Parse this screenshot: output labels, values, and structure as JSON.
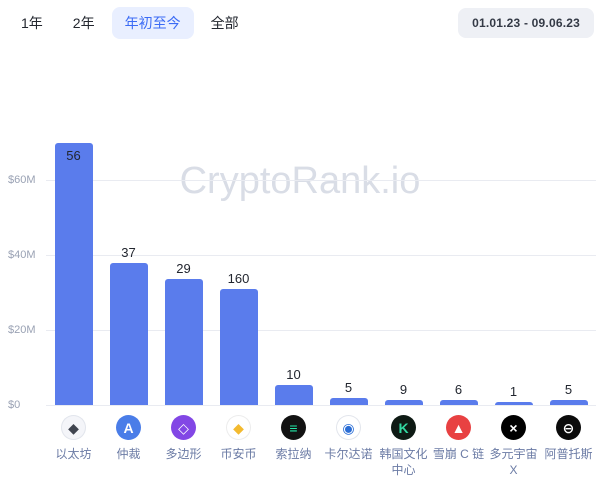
{
  "toolbar": {
    "tabs": [
      {
        "id": "1y",
        "label": "1年",
        "active": false
      },
      {
        "id": "2y",
        "label": "2年",
        "active": false
      },
      {
        "id": "ytd",
        "label": "年初至今",
        "active": true
      },
      {
        "id": "all",
        "label": "全部",
        "active": false
      }
    ],
    "date_range": "01.01.23 - 09.06.23",
    "active_tab_bg": "#e9efff",
    "active_tab_color": "#3b6bf5"
  },
  "watermark": "CryptoRank.io",
  "chart_data": {
    "type": "bar",
    "description": "Funds raised year-to-date per blockchain ecosystem; bar labels show number of rounds",
    "ylim": [
      0,
      80
    ],
    "yticks": [
      {
        "label": "$0",
        "value": 0
      },
      {
        "label": "$20M",
        "value": 20
      },
      {
        "label": "$40M",
        "value": 40
      },
      {
        "label": "$60M",
        "value": 60
      }
    ],
    "bar_color": "#5a7cec",
    "grid_color": "#e9ebf1",
    "items": [
      {
        "slug": "ethereum",
        "category": "以太坊",
        "value_musd": 70,
        "count_label": "56",
        "label_inside": true,
        "icon": {
          "name": "ethereum-icon",
          "glyph": "◆",
          "bg": "#f4f5f9",
          "fg": "#3f444f",
          "border": "#e2e5ec"
        }
      },
      {
        "slug": "arbitrum",
        "category": "仲裁",
        "value_musd": 38,
        "count_label": "37",
        "label_inside": false,
        "icon": {
          "name": "arbitrum-icon",
          "glyph": "A",
          "bg": "#4a7de8",
          "fg": "#ffffff",
          "border": ""
        }
      },
      {
        "slug": "polygon",
        "category": "多边形",
        "value_musd": 33.5,
        "count_label": "29",
        "label_inside": false,
        "icon": {
          "name": "polygon-icon",
          "glyph": "◇",
          "bg": "#8247e5",
          "fg": "#ffffff",
          "border": ""
        }
      },
      {
        "slug": "bnb-chain",
        "category": "币安币",
        "value_musd": 31,
        "count_label": "160",
        "label_inside": false,
        "icon": {
          "name": "bnb-icon",
          "glyph": "◆",
          "bg": "#ffffff",
          "fg": "#f3ba2f",
          "border": "#ececec"
        }
      },
      {
        "slug": "solana",
        "category": "索拉纳",
        "value_musd": 5.3,
        "count_label": "10",
        "label_inside": false,
        "icon": {
          "name": "solana-icon",
          "glyph": "≡",
          "bg": "#121212",
          "fg": "#23e8a8",
          "border": ""
        }
      },
      {
        "slug": "cardano",
        "category": "卡尔达诺",
        "value_musd": 2,
        "count_label": "5",
        "label_inside": false,
        "icon": {
          "name": "cardano-icon",
          "glyph": "◉",
          "bg": "#ffffff",
          "fg": "#2a6dd5",
          "border": "#e2e5ec"
        }
      },
      {
        "slug": "kcc",
        "category": "韩国文化中心",
        "value_musd": 1.4,
        "count_label": "9",
        "label_inside": false,
        "icon": {
          "name": "kcc-icon",
          "glyph": "K",
          "bg": "#0e1a14",
          "fg": "#31d7a0",
          "border": ""
        }
      },
      {
        "slug": "avalanche-c-chain",
        "category": "雪崩 C 链",
        "value_musd": 1.4,
        "count_label": "6",
        "label_inside": false,
        "icon": {
          "name": "avalanche-icon",
          "glyph": "▲",
          "bg": "#e84142",
          "fg": "#ffffff",
          "border": ""
        }
      },
      {
        "slug": "multiversx",
        "category": "多元宇宙 X",
        "value_musd": 0.9,
        "count_label": "1",
        "label_inside": false,
        "icon": {
          "name": "multiversx-icon",
          "glyph": "×",
          "bg": "#000000",
          "fg": "#ffffff",
          "border": ""
        }
      },
      {
        "slug": "aptos",
        "category": "阿普托斯",
        "value_musd": 1.4,
        "count_label": "5",
        "label_inside": false,
        "icon": {
          "name": "aptos-icon",
          "glyph": "⊖",
          "bg": "#0b0b0b",
          "fg": "#ffffff",
          "border": ""
        }
      }
    ]
  }
}
